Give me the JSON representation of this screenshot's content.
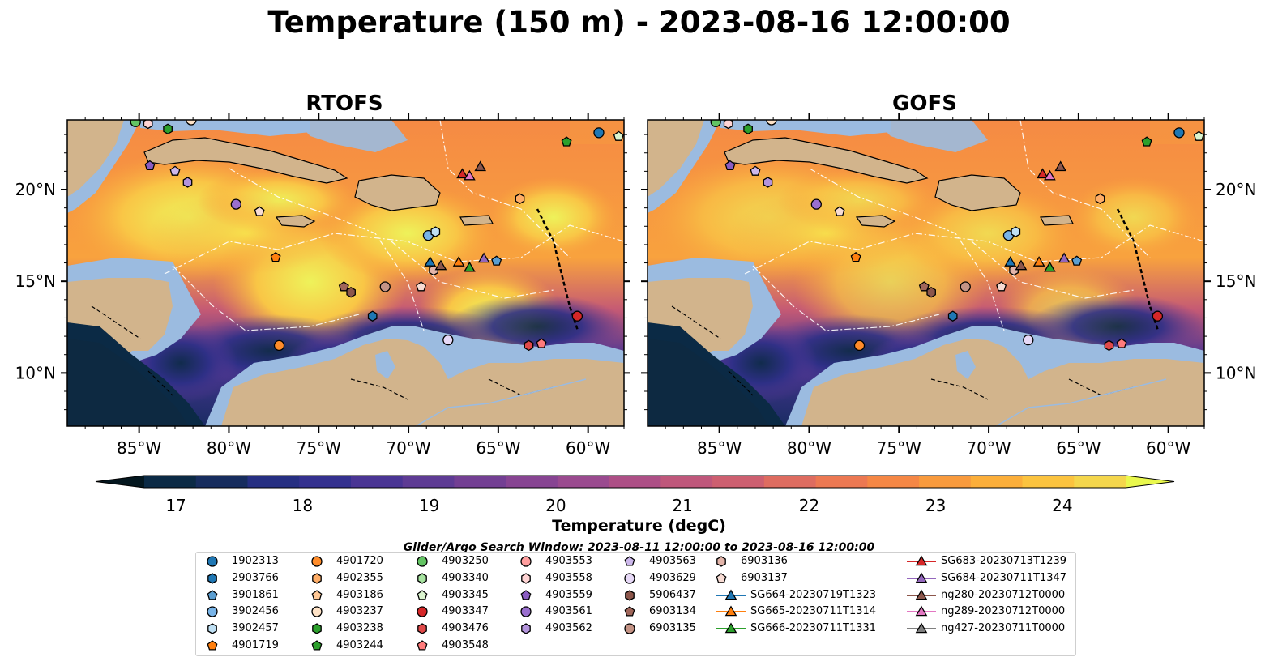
{
  "title": "Temperature (150 m) - 2023-08-16 12:00:00",
  "panels": [
    {
      "title": "RTOFS"
    },
    {
      "title": "GOFS"
    }
  ],
  "axes": {
    "x_ticks": [
      "85°W",
      "80°W",
      "75°W",
      "70°W",
      "65°W",
      "60°W"
    ],
    "x_tick_values": [
      -85,
      -80,
      -75,
      -70,
      -65,
      -60
    ],
    "y_ticks": [
      "20°N",
      "15°N",
      "10°N"
    ],
    "y_tick_values": [
      20,
      15,
      10
    ],
    "lon_range": [
      -89,
      -58
    ],
    "lat_range": [
      7.1,
      23.8
    ]
  },
  "colorbar": {
    "label": "Temperature (degC)",
    "ticks": [
      "17",
      "18",
      "19",
      "20",
      "21",
      "22",
      "23",
      "24"
    ],
    "tick_values": [
      17,
      18,
      19,
      20,
      21,
      22,
      23,
      24
    ],
    "range": [
      16.75,
      24.5
    ],
    "colors": [
      "#0b2a45",
      "#172d5e",
      "#262f82",
      "#34318f",
      "#4a3594",
      "#5e3b94",
      "#733f93",
      "#874492",
      "#9a4a8f",
      "#ad4f86",
      "#bf577b",
      "#cd5f70",
      "#de6c60",
      "#ec7852",
      "#f58745",
      "#f89a3d",
      "#fbae3a",
      "#fbc33f",
      "#f4d64c"
    ],
    "arrow_low": "#04171f",
    "arrow_high": "#e9f84d"
  },
  "search_window": "Glider/Argo Search Window: 2023-08-11 12:00:00 to 2023-08-16 12:00:00",
  "legend": {
    "columns": [
      [
        {
          "label": "1902313",
          "marker": "circle",
          "color": "#1f77b4"
        },
        {
          "label": "2903766",
          "marker": "hexagon",
          "color": "#1f77b4"
        },
        {
          "label": "3901861",
          "marker": "pentagon",
          "color": "#5b9ed1"
        },
        {
          "label": "3902456",
          "marker": "circle",
          "color": "#78b4e8"
        },
        {
          "label": "3902457",
          "marker": "hexagon",
          "color": "#bfe0f4"
        },
        {
          "label": "4901719",
          "marker": "pentagon",
          "color": "#ff7f0e"
        }
      ],
      [
        {
          "label": "4901720",
          "marker": "circle",
          "color": "#ff8c2a"
        },
        {
          "label": "4902355",
          "marker": "hexagon",
          "color": "#ffad66"
        },
        {
          "label": "4903186",
          "marker": "pentagon",
          "color": "#ffc896"
        },
        {
          "label": "4903237",
          "marker": "circle",
          "color": "#ffe3c7"
        },
        {
          "label": "4903238",
          "marker": "hexagon",
          "color": "#2ca02c"
        },
        {
          "label": "4903244",
          "marker": "pentagon",
          "color": "#2ca02c"
        }
      ],
      [
        {
          "label": "4903250",
          "marker": "circle",
          "color": "#63c463"
        },
        {
          "label": "4903340",
          "marker": "hexagon",
          "color": "#a7e3a0"
        },
        {
          "label": "4903345",
          "marker": "pentagon",
          "color": "#dbf5cf"
        },
        {
          "label": "4903347",
          "marker": "circle",
          "color": "#d62728"
        },
        {
          "label": "4903476",
          "marker": "hexagon",
          "color": "#e04949"
        },
        {
          "label": "4903548",
          "marker": "pentagon",
          "color": "#ff7b7b"
        }
      ],
      [
        {
          "label": "4903553",
          "marker": "circle",
          "color": "#ff9e9e"
        },
        {
          "label": "4903558",
          "marker": "hexagon",
          "color": "#ffd4d4"
        },
        {
          "label": "4903559",
          "marker": "pentagon",
          "color": "#8a5cc2"
        },
        {
          "label": "4903561",
          "marker": "circle",
          "color": "#9a6fcf"
        },
        {
          "label": "4903562",
          "marker": "hexagon",
          "color": "#b394dc"
        }
      ],
      [
        {
          "label": "4903563",
          "marker": "pentagon",
          "color": "#cdb8ec"
        },
        {
          "label": "4903629",
          "marker": "circle",
          "color": "#e7d9f7"
        },
        {
          "label": "5906437",
          "marker": "hexagon",
          "color": "#8c564b"
        },
        {
          "label": "6903134",
          "marker": "pentagon",
          "color": "#a0665a"
        },
        {
          "label": "6903135",
          "marker": "circle",
          "color": "#c49385"
        }
      ],
      [
        {
          "label": "6903136",
          "marker": "hexagon",
          "color": "#e3b5aa"
        },
        {
          "label": "6903137",
          "marker": "pentagon",
          "color": "#f8dcd4"
        },
        {
          "label": "SG664-20230719T1323",
          "marker": "triangle-line",
          "color": "#1f77b4"
        },
        {
          "label": "SG665-20230711T1314",
          "marker": "triangle-line",
          "color": "#ff7f0e"
        },
        {
          "label": "SG666-20230711T1331",
          "marker": "triangle-line",
          "color": "#2ca02c"
        }
      ],
      [
        {
          "label": "SG683-20230713T1239",
          "marker": "triangle-line",
          "color": "#d62728"
        },
        {
          "label": "SG684-20230711T1347",
          "marker": "triangle-line",
          "color": "#9467bd"
        },
        {
          "label": "ng280-20230712T0000",
          "marker": "triangle-line",
          "color": "#8c564b"
        },
        {
          "label": "ng289-20230712T0000",
          "marker": "triangle-line",
          "color": "#e377c2"
        },
        {
          "label": "ng427-20230711T0000",
          "marker": "triangle-line",
          "color": "#7f7f7f"
        }
      ]
    ]
  },
  "chart_data": {
    "type": "map",
    "variable": "Temperature",
    "units": "degC",
    "depth": "150 m",
    "observations": [
      {
        "id": "1902313",
        "lon": -59.4,
        "lat": 23.1
      },
      {
        "id": "4903345",
        "lon": -58.3,
        "lat": 22.9
      },
      {
        "id": "4903244",
        "lon": -61.2,
        "lat": 22.6
      },
      {
        "id": "4903250",
        "lon": -85.2,
        "lat": 23.7
      },
      {
        "id": "4903558",
        "lon": -84.5,
        "lat": 23.6
      },
      {
        "id": "4903238",
        "lon": -83.4,
        "lat": 23.3
      },
      {
        "id": "4903237",
        "lon": -82.1,
        "lat": 23.8
      },
      {
        "id": "4903559",
        "lon": -84.4,
        "lat": 21.3
      },
      {
        "id": "4903563",
        "lon": -83.0,
        "lat": 21.0
      },
      {
        "id": "4903562",
        "lon": -82.3,
        "lat": 20.4
      },
      {
        "id": "4903561",
        "lon": -79.6,
        "lat": 19.2
      },
      {
        "id": "6903137",
        "lon": -78.3,
        "lat": 18.8
      },
      {
        "id": "4901719",
        "lon": -77.4,
        "lat": 16.3
      },
      {
        "id": "4901720",
        "lon": -77.2,
        "lat": 11.5
      },
      {
        "id": "4902355",
        "lon": -63.8,
        "lat": 19.5
      },
      {
        "id": "3902456",
        "lon": -68.9,
        "lat": 17.5
      },
      {
        "id": "3902457",
        "lon": -68.5,
        "lat": 17.7
      },
      {
        "id": "3901861",
        "lon": -65.1,
        "lat": 16.1
      },
      {
        "id": "6903134",
        "lon": -73.6,
        "lat": 14.7
      },
      {
        "id": "5906437",
        "lon": -73.2,
        "lat": 14.4
      },
      {
        "id": "6903135",
        "lon": -71.3,
        "lat": 14.7
      },
      {
        "id": "6903136",
        "lon": -68.6,
        "lat": 15.6
      },
      {
        "id": "6903137",
        "lon": -69.3,
        "lat": 14.7
      },
      {
        "id": "2903766",
        "lon": -72.0,
        "lat": 13.1
      },
      {
        "id": "4903629",
        "lon": -67.8,
        "lat": 11.8
      },
      {
        "id": "4903347",
        "lon": -60.6,
        "lat": 13.1
      },
      {
        "id": "4903476",
        "lon": -63.3,
        "lat": 11.5
      },
      {
        "id": "4903548",
        "lon": -62.6,
        "lat": 11.6
      },
      {
        "id": "SG683-20230713T1239",
        "lon": -67.0,
        "lat": 20.8
      },
      {
        "id": "ng289-20230712T0000",
        "lon": -66.6,
        "lat": 20.7
      },
      {
        "id": "ng280-20230712T0000",
        "lon": -66.0,
        "lat": 21.2
      },
      {
        "id": "SG664-20230719T1323",
        "lon": -68.8,
        "lat": 16.0
      },
      {
        "id": "ng280-20230712T0000",
        "lon": -68.2,
        "lat": 15.8
      },
      {
        "id": "SG665-20230711T1314",
        "lon": -67.2,
        "lat": 16.0
      },
      {
        "id": "SG666-20230711T1331",
        "lon": -66.6,
        "lat": 15.7
      },
      {
        "id": "SG684-20230711T1347",
        "lon": -65.8,
        "lat": 16.2
      }
    ]
  }
}
